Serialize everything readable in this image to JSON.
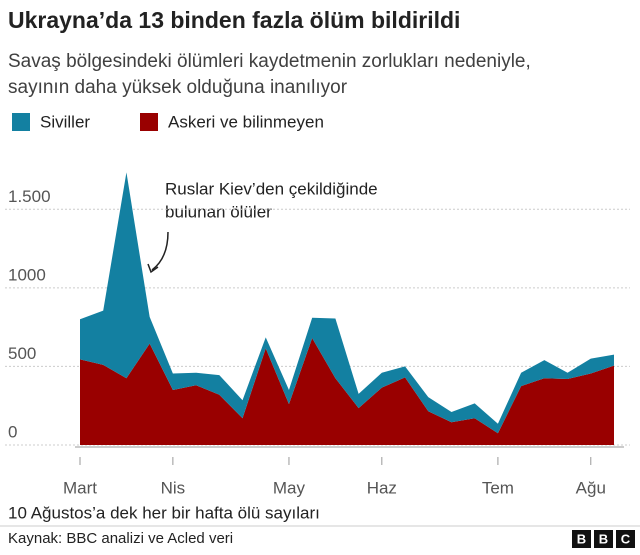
{
  "chart_data": {
    "type": "area",
    "title": "Ukrayna’da 13 binden fazla ölüm bildirildi",
    "subtitle": [
      "Savaş bölgesindeki ölümleri kaydetmenin zorlukları nedeniyle,",
      "sayının daha yüksek olduğuna inanılıyor"
    ],
    "stacked": true,
    "categories": [
      "Mart",
      null,
      null,
      null,
      "Nis",
      null,
      null,
      null,
      null,
      "May",
      null,
      null,
      null,
      "Haz",
      null,
      null,
      null,
      null,
      "Tem",
      null,
      null,
      null,
      "Ağu",
      null
    ],
    "series": [
      {
        "name": "Siviller",
        "color": "#1380a1",
        "values": [
          255,
          345,
          1310,
          170,
          105,
          80,
          125,
          115,
          70,
          90,
          130,
          380,
          90,
          95,
          70,
          90,
          65,
          95,
          60,
          85,
          115,
          40,
          95,
          70
        ]
      },
      {
        "name": "Askeri ve bilinmeyen",
        "color": "#990000",
        "values": [
          545,
          510,
          425,
          645,
          350,
          380,
          320,
          170,
          615,
          260,
          680,
          425,
          235,
          365,
          430,
          215,
          145,
          170,
          75,
          375,
          425,
          420,
          455,
          505
        ]
      }
    ],
    "ylim": [
      0,
      1750
    ],
    "yticks": [
      0,
      500,
      1000,
      {
        "value": 1500,
        "label": "1.500"
      }
    ],
    "grid": true,
    "annotation": [
      "Ruslar Kiev’den çekildiğinde",
      "bulunan ölüler"
    ],
    "note": "10 Ağustos’a dek her bir hafta ölü sayıları",
    "source": "Kaynak: BBC analizi ve Acled veri",
    "logo": [
      "B",
      "B",
      "C"
    ]
  }
}
